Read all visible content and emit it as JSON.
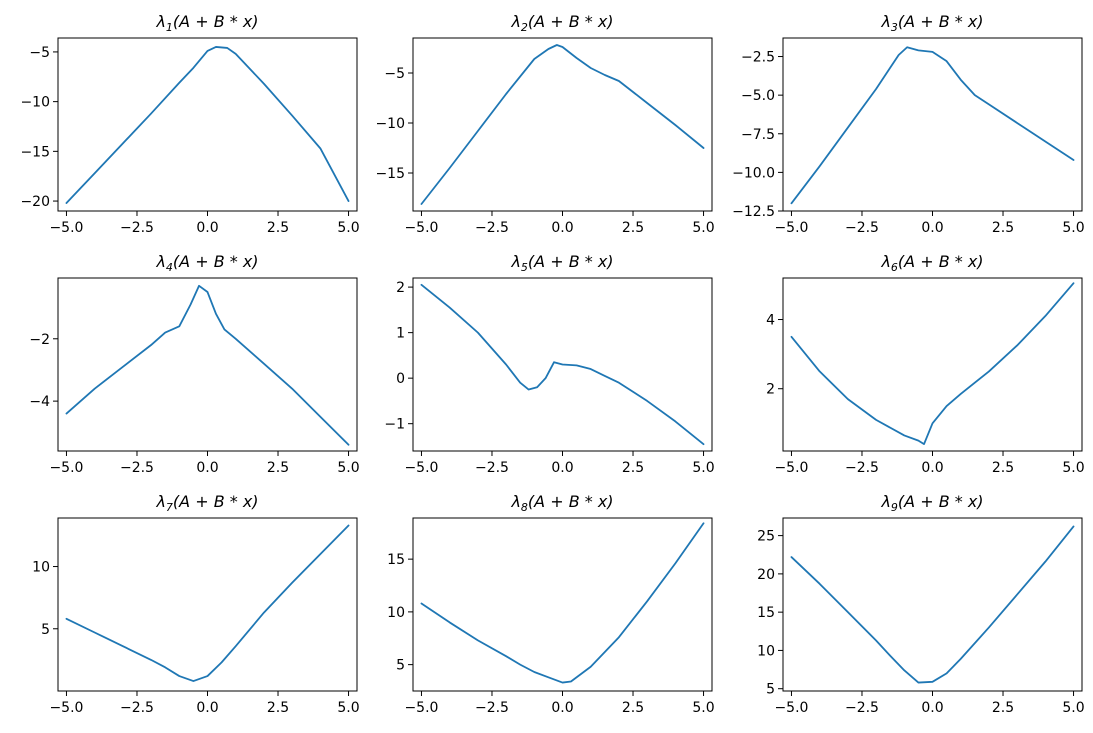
{
  "colors": {
    "line": "#1f77b4",
    "axes": "#000000",
    "background": "#ffffff"
  },
  "title_template": {
    "symbol": "λ",
    "expression": "(A + B * x)"
  },
  "chart_data": [
    {
      "type": "line",
      "title": "λ1(A + B * x)",
      "index": "1",
      "xlim": [
        -5.3,
        5.3
      ],
      "ylim": [
        -21,
        -3.6
      ],
      "xticks": [
        -5.0,
        -2.5,
        0.0,
        2.5,
        5.0
      ],
      "yticks": [
        -20,
        -15,
        -10,
        -5
      ],
      "xtick_labels": [
        "−5.0",
        "−2.5",
        "0.0",
        "2.5",
        "5.0"
      ],
      "ytick_labels": [
        "−20",
        "−15",
        "−10",
        "−5"
      ],
      "x": [
        -5,
        -4,
        -3,
        -2,
        -1,
        -0.5,
        0,
        0.3,
        0.7,
        1,
        2,
        3,
        4,
        5
      ],
      "y": [
        -20.2,
        -17.2,
        -14.2,
        -11.2,
        -8.1,
        -6.6,
        -4.9,
        -4.5,
        -4.6,
        -5.2,
        -8.2,
        -11.4,
        -14.7,
        -20.0
      ]
    },
    {
      "type": "line",
      "title": "λ2(A + B * x)",
      "index": "2",
      "xlim": [
        -5.3,
        5.3
      ],
      "ylim": [
        -18.8,
        -1.5
      ],
      "xticks": [
        -5.0,
        -2.5,
        0.0,
        2.5,
        5.0
      ],
      "yticks": [
        -15,
        -10,
        -5
      ],
      "xtick_labels": [
        "−5.0",
        "−2.5",
        "0.0",
        "2.5",
        "5.0"
      ],
      "ytick_labels": [
        "−15",
        "−10",
        "−5"
      ],
      "x": [
        -5,
        -4,
        -3,
        -2,
        -1,
        -0.5,
        -0.2,
        0,
        0.5,
        1,
        1.5,
        2,
        3,
        4,
        5
      ],
      "y": [
        -18.1,
        -14.5,
        -10.8,
        -7.1,
        -3.6,
        -2.6,
        -2.2,
        -2.4,
        -3.5,
        -4.5,
        -5.2,
        -5.8,
        -8.0,
        -10.2,
        -12.5
      ]
    },
    {
      "type": "line",
      "title": "λ3(A + B * x)",
      "index": "3",
      "xlim": [
        -5.3,
        5.3
      ],
      "ylim": [
        -12.5,
        -1.3
      ],
      "xticks": [
        -5.0,
        -2.5,
        0.0,
        2.5,
        5.0
      ],
      "yticks": [
        -12.5,
        -10.0,
        -7.5,
        -5.0,
        -2.5
      ],
      "xtick_labels": [
        "−5.0",
        "−2.5",
        "0.0",
        "2.5",
        "5.0"
      ],
      "ytick_labels": [
        "−12.5",
        "−10.0",
        "−7.5",
        "−5.0",
        "−2.5"
      ],
      "x": [
        -5,
        -4,
        -3,
        -2,
        -1.2,
        -0.9,
        -0.5,
        0,
        0.5,
        1,
        1.5,
        2,
        3,
        4,
        5
      ],
      "y": [
        -12.0,
        -9.6,
        -7.1,
        -4.6,
        -2.4,
        -1.9,
        -2.1,
        -2.2,
        -2.8,
        -4.0,
        -5.0,
        -5.6,
        -6.8,
        -8.0,
        -9.2
      ]
    },
    {
      "type": "line",
      "title": "λ4(A + B * x)",
      "index": "4",
      "xlim": [
        -5.3,
        5.3
      ],
      "ylim": [
        -5.6,
        -0.05
      ],
      "xticks": [
        -5.0,
        -2.5,
        0.0,
        2.5,
        5.0
      ],
      "yticks": [
        -4,
        -2
      ],
      "xtick_labels": [
        "−5.0",
        "−2.5",
        "0.0",
        "2.5",
        "5.0"
      ],
      "ytick_labels": [
        "−4",
        "−2"
      ],
      "x": [
        -5,
        -4,
        -3,
        -2,
        -1.5,
        -1,
        -0.6,
        -0.3,
        0,
        0.3,
        0.6,
        1,
        2,
        3,
        4,
        5
      ],
      "y": [
        -4.4,
        -3.6,
        -2.9,
        -2.2,
        -1.8,
        -1.6,
        -0.9,
        -0.3,
        -0.5,
        -1.2,
        -1.7,
        -2.0,
        -2.8,
        -3.6,
        -4.5,
        -5.4
      ]
    },
    {
      "type": "line",
      "title": "λ5(A + B * x)",
      "index": "5",
      "xlim": [
        -5.3,
        5.3
      ],
      "ylim": [
        -1.6,
        2.2
      ],
      "xticks": [
        -5.0,
        -2.5,
        0.0,
        2.5,
        5.0
      ],
      "yticks": [
        -1,
        0,
        1,
        2
      ],
      "xtick_labels": [
        "−5.0",
        "−2.5",
        "0.0",
        "2.5",
        "5.0"
      ],
      "ytick_labels": [
        "−1",
        "0",
        "1",
        "2"
      ],
      "x": [
        -5,
        -4,
        -3,
        -2,
        -1.5,
        -1.2,
        -0.9,
        -0.6,
        -0.3,
        0,
        0.5,
        1,
        1.5,
        2,
        3,
        4,
        5
      ],
      "y": [
        2.05,
        1.55,
        1.0,
        0.3,
        -0.1,
        -0.25,
        -0.2,
        0.0,
        0.35,
        0.3,
        0.28,
        0.2,
        0.05,
        -0.1,
        -0.5,
        -0.95,
        -1.45
      ]
    },
    {
      "type": "line",
      "title": "λ6(A + B * x)",
      "index": "6",
      "xlim": [
        -5.3,
        5.3
      ],
      "ylim": [
        0.2,
        5.2
      ],
      "xticks": [
        -5.0,
        -2.5,
        0.0,
        2.5,
        5.0
      ],
      "yticks": [
        2,
        4
      ],
      "xtick_labels": [
        "−5.0",
        "−2.5",
        "0.0",
        "2.5",
        "5.0"
      ],
      "ytick_labels": [
        "2",
        "4"
      ],
      "x": [
        -5,
        -4,
        -3,
        -2,
        -1,
        -0.5,
        -0.3,
        0,
        0.5,
        1,
        2,
        3,
        4,
        5
      ],
      "y": [
        3.5,
        2.5,
        1.7,
        1.1,
        0.65,
        0.5,
        0.4,
        1.0,
        1.5,
        1.85,
        2.5,
        3.25,
        4.1,
        5.05
      ]
    },
    {
      "type": "line",
      "title": "λ7(A + B * x)",
      "index": "7",
      "xlim": [
        -5.3,
        5.3
      ],
      "ylim": [
        0,
        13.9
      ],
      "xticks": [
        -5.0,
        -2.5,
        0.0,
        2.5,
        5.0
      ],
      "yticks": [
        5,
        10
      ],
      "xtick_labels": [
        "−5.0",
        "−2.5",
        "0.0",
        "2.5",
        "5.0"
      ],
      "ytick_labels": [
        "5",
        "10"
      ],
      "x": [
        -5,
        -4,
        -3,
        -2,
        -1.5,
        -1,
        -0.5,
        0,
        0.5,
        1,
        2,
        3,
        4,
        5
      ],
      "y": [
        5.8,
        4.7,
        3.6,
        2.5,
        1.9,
        1.2,
        0.8,
        1.2,
        2.3,
        3.6,
        6.3,
        8.7,
        11.0,
        13.3
      ]
    },
    {
      "type": "line",
      "title": "λ8(A + B * x)",
      "index": "8",
      "xlim": [
        -5.3,
        5.3
      ],
      "ylim": [
        2.5,
        18.9
      ],
      "xticks": [
        -5.0,
        -2.5,
        0.0,
        2.5,
        5.0
      ],
      "yticks": [
        5,
        10,
        15
      ],
      "xtick_labels": [
        "−5.0",
        "−2.5",
        "0.0",
        "2.5",
        "5.0"
      ],
      "ytick_labels": [
        "5",
        "10",
        "15"
      ],
      "x": [
        -5,
        -4,
        -3,
        -2,
        -1.5,
        -1,
        -0.5,
        0,
        0.3,
        1,
        2,
        3,
        4,
        5
      ],
      "y": [
        10.8,
        9.0,
        7.3,
        5.8,
        5.0,
        4.3,
        3.8,
        3.3,
        3.4,
        4.8,
        7.6,
        11.0,
        14.6,
        18.4
      ]
    },
    {
      "type": "line",
      "title": "λ9(A + B * x)",
      "index": "9",
      "xlim": [
        -5.3,
        5.3
      ],
      "ylim": [
        4.7,
        27.3
      ],
      "xticks": [
        -5.0,
        -2.5,
        0.0,
        2.5,
        5.0
      ],
      "yticks": [
        5,
        10,
        15,
        20,
        25
      ],
      "xtick_labels": [
        "−5.0",
        "−2.5",
        "0.0",
        "2.5",
        "5.0"
      ],
      "ytick_labels": [
        "5",
        "10",
        "15",
        "20",
        "25"
      ],
      "x": [
        -5,
        -4,
        -3,
        -2,
        -1.5,
        -1,
        -0.5,
        0,
        0.5,
        1,
        2,
        3,
        4,
        5
      ],
      "y": [
        22.2,
        18.7,
        15.0,
        11.3,
        9.3,
        7.4,
        5.8,
        5.9,
        7.0,
        8.9,
        13.0,
        17.3,
        21.6,
        26.2
      ]
    }
  ]
}
